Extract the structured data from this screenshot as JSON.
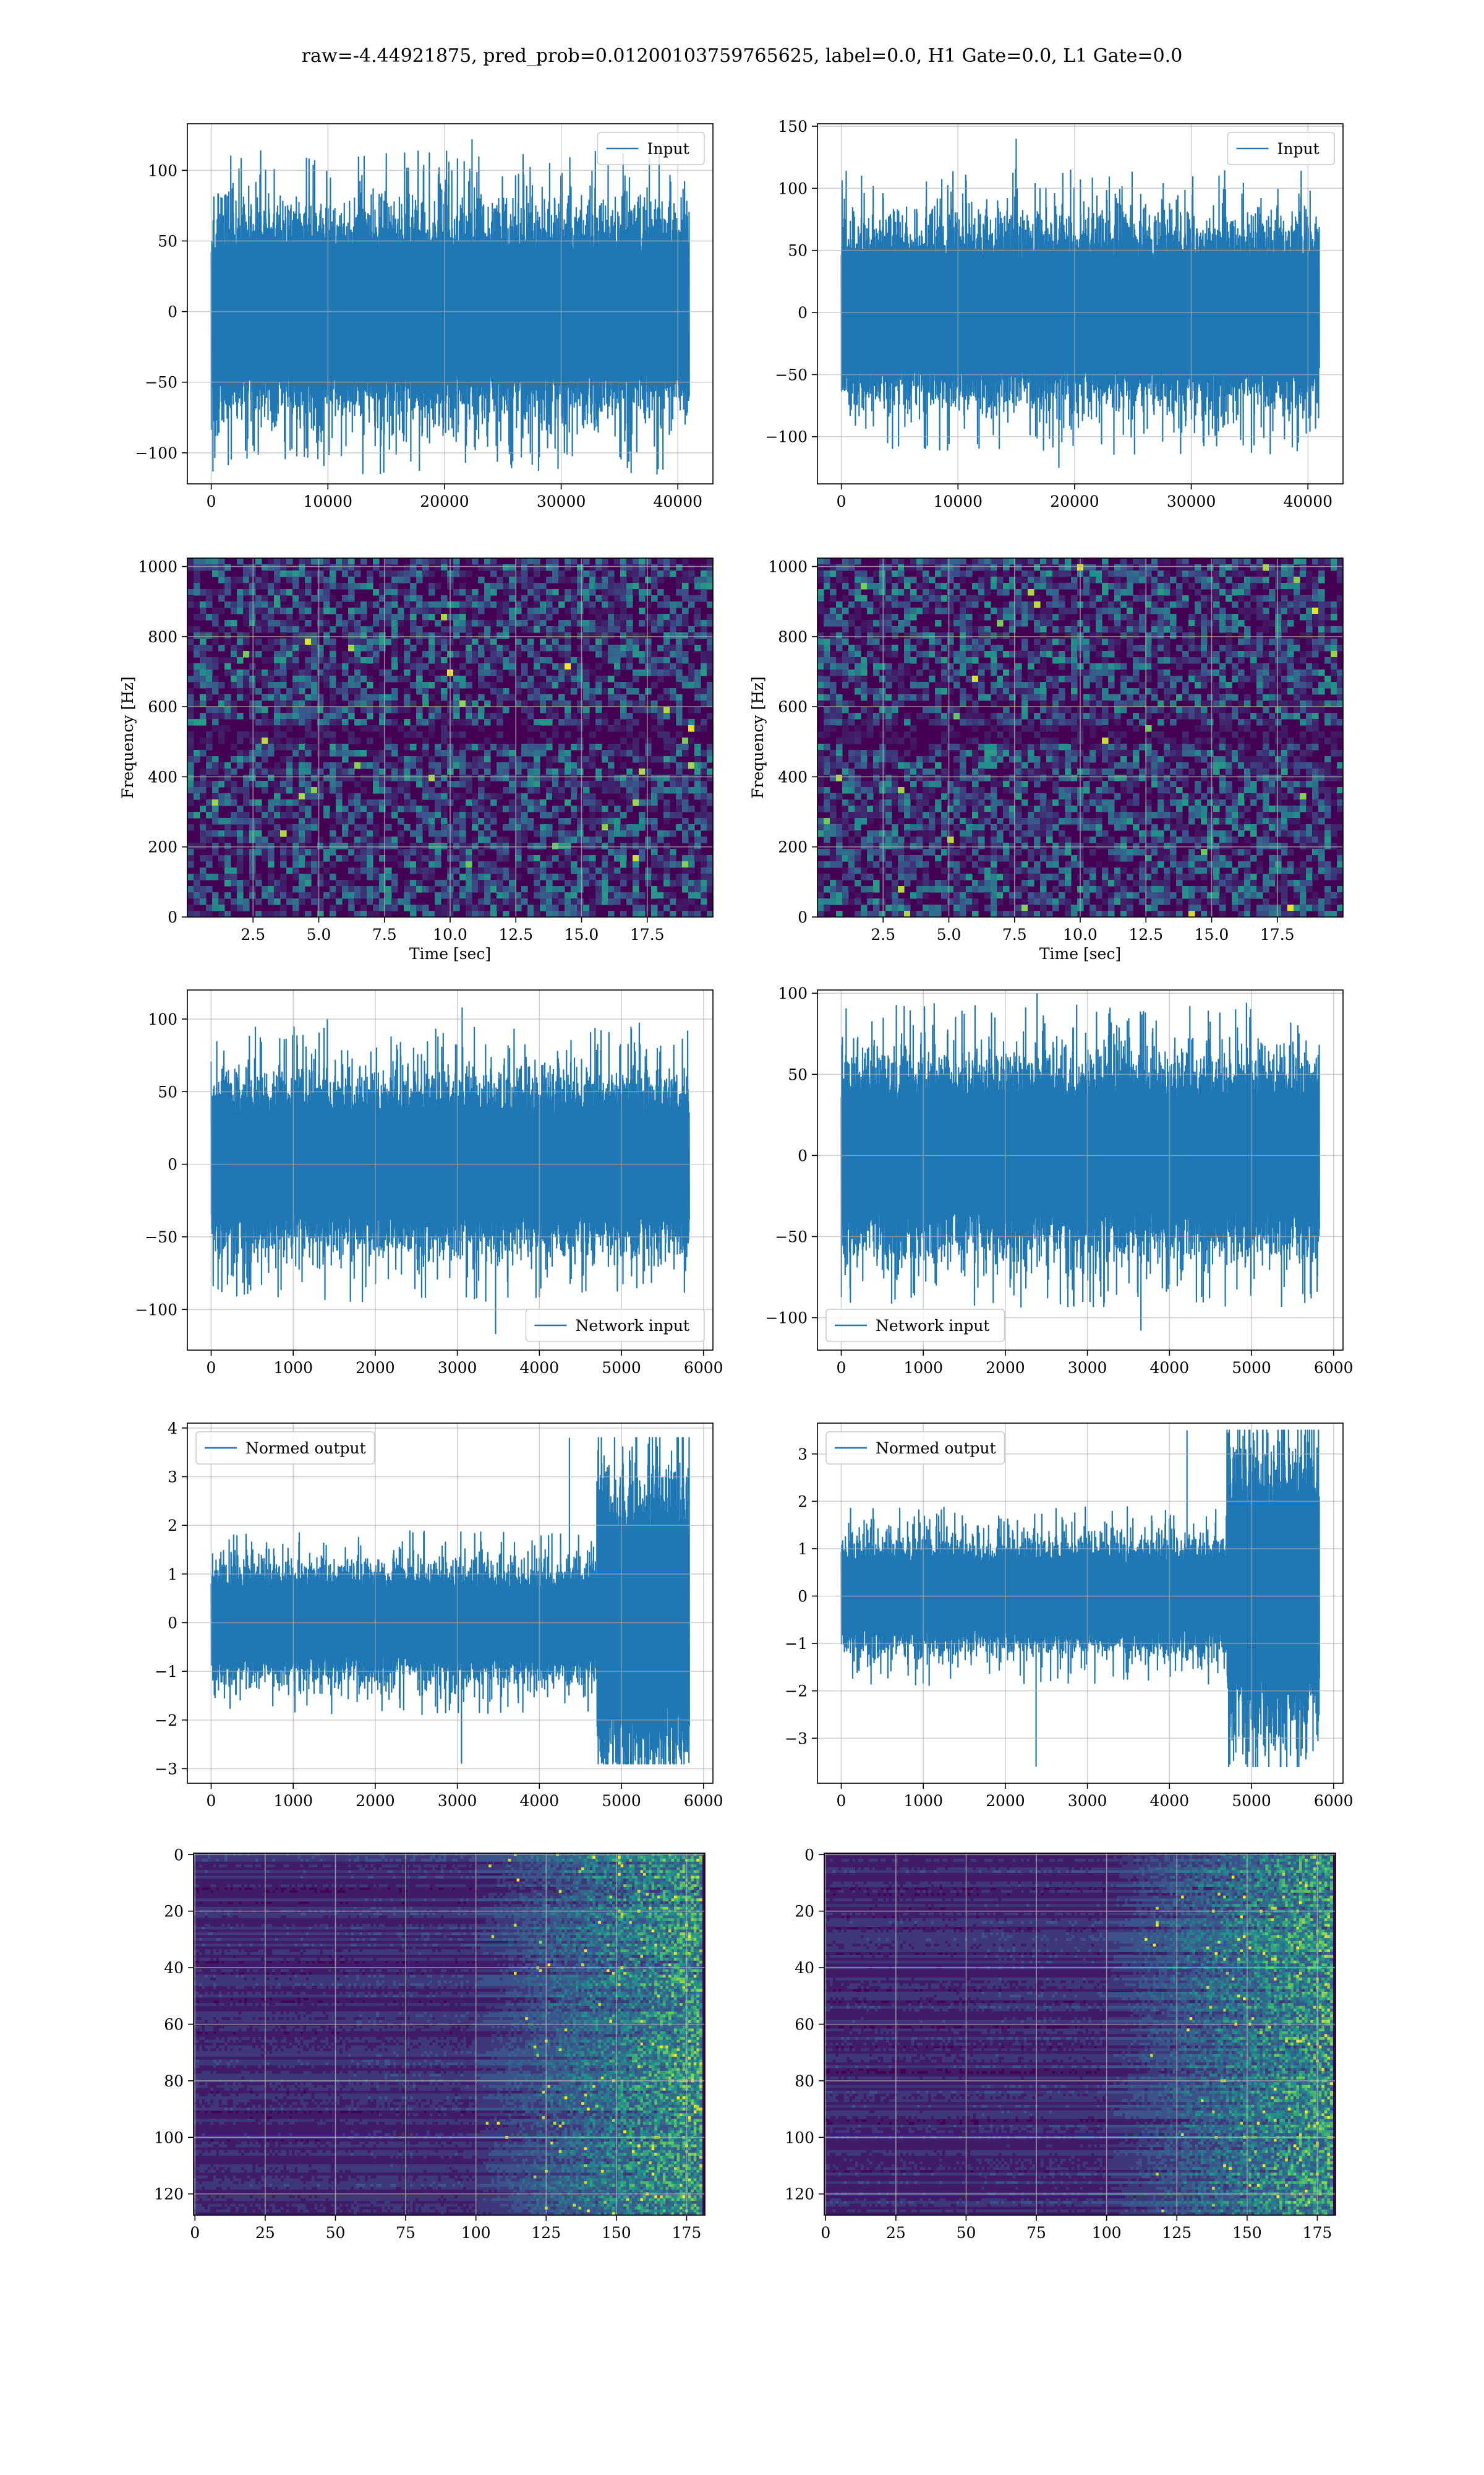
{
  "figure": {
    "suptitle": "raw=-4.44921875, pred_prob=0.01200103759765625, label=0.0, H1 Gate=0.0, L1 Gate=0.0"
  },
  "colors": {
    "line": "#1f77b4",
    "grid": "#b0b0b0",
    "spine": "#000000",
    "viridis_low": "#440154",
    "viridis_mid": "#21918c",
    "viridis_high": "#fde725"
  },
  "chart_data": [
    {
      "id": "input-h1",
      "type": "line",
      "title": "",
      "xlabel": "",
      "ylabel": "",
      "legend": {
        "label": "Input",
        "placement": "upper right"
      },
      "xlim": [
        -2048,
        43008
      ],
      "ylim": [
        -122,
        133
      ],
      "xticks": [
        0,
        10000,
        20000,
        30000,
        40000
      ],
      "xtick_labels": [
        "0",
        "10000",
        "20000",
        "30000",
        "40000"
      ],
      "yticks": [
        -100,
        -50,
        0,
        50,
        100
      ],
      "ytick_labels": [
        "−100",
        "−50",
        "0",
        "50",
        "100"
      ],
      "series": [
        {
          "name": "Input",
          "x_range": [
            0,
            40960
          ],
          "n_points": 40960,
          "band": [
            -55,
            55
          ],
          "peak_max": 122,
          "peak_min": -115
        }
      ],
      "grid": true
    },
    {
      "id": "input-l1",
      "type": "line",
      "title": "",
      "xlabel": "",
      "ylabel": "",
      "legend": {
        "label": "Input",
        "placement": "upper right"
      },
      "xlim": [
        -2048,
        43008
      ],
      "ylim": [
        -138,
        152
      ],
      "xticks": [
        0,
        10000,
        20000,
        30000,
        40000
      ],
      "xtick_labels": [
        "0",
        "10000",
        "20000",
        "30000",
        "40000"
      ],
      "yticks": [
        -100,
        -50,
        0,
        50,
        100,
        150
      ],
      "ytick_labels": [
        "−100",
        "−50",
        "0",
        "50",
        "100",
        "150"
      ],
      "series": [
        {
          "name": "Input",
          "x_range": [
            0,
            40960
          ],
          "n_points": 40960,
          "band": [
            -55,
            55
          ],
          "peak_max": 140,
          "peak_min": -125
        }
      ],
      "grid": true
    },
    {
      "id": "spectrogram-h1",
      "type": "heatmap",
      "title": "",
      "xlabel": "Time [sec]",
      "ylabel": "Frequency [Hz]",
      "xlim": [
        0,
        20
      ],
      "ylim": [
        0,
        1024
      ],
      "xticks": [
        2.5,
        5.0,
        7.5,
        10.0,
        12.5,
        15.0,
        17.5
      ],
      "xtick_labels": [
        "2.5",
        "5.0",
        "7.5",
        "10.0",
        "12.5",
        "15.0",
        "17.5"
      ],
      "yticks": [
        0,
        200,
        400,
        600,
        800,
        1000
      ],
      "ytick_labels": [
        "0",
        "200",
        "400",
        "600",
        "800",
        "1000"
      ],
      "colormap": "viridis",
      "grid": true
    },
    {
      "id": "spectrogram-l1",
      "type": "heatmap",
      "title": "",
      "xlabel": "Time [sec]",
      "ylabel": "Frequency [Hz]",
      "xlim": [
        0,
        20
      ],
      "ylim": [
        0,
        1024
      ],
      "xticks": [
        2.5,
        5.0,
        7.5,
        10.0,
        12.5,
        15.0,
        17.5
      ],
      "xtick_labels": [
        "2.5",
        "5.0",
        "7.5",
        "10.0",
        "12.5",
        "15.0",
        "17.5"
      ],
      "yticks": [
        0,
        200,
        400,
        600,
        800,
        1000
      ],
      "ytick_labels": [
        "0",
        "200",
        "400",
        "600",
        "800",
        "1000"
      ],
      "colormap": "viridis",
      "grid": true
    },
    {
      "id": "network-input-h1",
      "type": "line",
      "title": "",
      "xlabel": "",
      "ylabel": "",
      "legend": {
        "label": "Network input",
        "placement": "lower right"
      },
      "xlim": [
        -290,
        6115
      ],
      "ylim": [
        -128,
        120
      ],
      "xticks": [
        0,
        1000,
        2000,
        3000,
        4000,
        5000,
        6000
      ],
      "xtick_labels": [
        "0",
        "1000",
        "2000",
        "3000",
        "4000",
        "5000",
        "6000"
      ],
      "yticks": [
        -100,
        -50,
        0,
        50,
        100
      ],
      "ytick_labels": [
        "−100",
        "−50",
        "0",
        "50",
        "100"
      ],
      "series": [
        {
          "name": "Network input",
          "x_range": [
            0,
            5825
          ],
          "n_points": 5825,
          "band": [
            -45,
            45
          ],
          "peak_max": 108,
          "peak_min": -117
        }
      ],
      "grid": true
    },
    {
      "id": "network-input-l1",
      "type": "line",
      "title": "",
      "xlabel": "",
      "ylabel": "",
      "legend": {
        "label": "Network input",
        "placement": "lower left"
      },
      "xlim": [
        -290,
        6115
      ],
      "ylim": [
        -120,
        102
      ],
      "xticks": [
        0,
        1000,
        2000,
        3000,
        4000,
        5000,
        6000
      ],
      "xtick_labels": [
        "0",
        "1000",
        "2000",
        "3000",
        "4000",
        "5000",
        "6000"
      ],
      "yticks": [
        -100,
        -50,
        0,
        50,
        100
      ],
      "ytick_labels": [
        "−100",
        "−50",
        "0",
        "50",
        "100"
      ],
      "series": [
        {
          "name": "Network input",
          "x_range": [
            0,
            5825
          ],
          "n_points": 5825,
          "band": [
            -45,
            45
          ],
          "peak_max": 100,
          "peak_min": -108
        }
      ],
      "grid": true
    },
    {
      "id": "normed-output-h1",
      "type": "line",
      "title": "",
      "xlabel": "",
      "ylabel": "",
      "legend": {
        "label": "Normed output",
        "placement": "upper left"
      },
      "xlim": [
        -290,
        6115
      ],
      "ylim": [
        -3.3,
        4.1
      ],
      "xticks": [
        0,
        1000,
        2000,
        3000,
        4000,
        5000,
        6000
      ],
      "xtick_labels": [
        "0",
        "1000",
        "2000",
        "3000",
        "4000",
        "5000",
        "6000"
      ],
      "yticks": [
        -3,
        -2,
        -1,
        0,
        1,
        2,
        3,
        4
      ],
      "ytick_labels": [
        "−3",
        "−2",
        "−1",
        "0",
        "1",
        "2",
        "3",
        "4"
      ],
      "series": [
        {
          "name": "Normed output",
          "x_range": [
            0,
            5825
          ],
          "n_points": 5825,
          "segments": [
            {
              "from": 0,
              "to": 4700,
              "band": [
                -0.9,
                0.9
              ]
            },
            {
              "from": 4700,
              "to": 5825,
              "band": [
                -2.2,
                2.4
              ]
            }
          ],
          "peak_max": 3.8,
          "peak_min": -2.9
        }
      ],
      "grid": true
    },
    {
      "id": "normed-output-l1",
      "type": "line",
      "title": "",
      "xlabel": "",
      "ylabel": "",
      "legend": {
        "label": "Normed output",
        "placement": "upper left"
      },
      "xlim": [
        -290,
        6115
      ],
      "ylim": [
        -3.95,
        3.65
      ],
      "xticks": [
        0,
        1000,
        2000,
        3000,
        4000,
        5000,
        6000
      ],
      "xtick_labels": [
        "0",
        "1000",
        "2000",
        "3000",
        "4000",
        "5000",
        "6000"
      ],
      "yticks": [
        -3,
        -2,
        -1,
        0,
        1,
        2,
        3
      ],
      "ytick_labels": [
        "−3",
        "−2",
        "−1",
        "0",
        "1",
        "2",
        "3"
      ],
      "series": [
        {
          "name": "Normed output",
          "x_range": [
            0,
            5825
          ],
          "n_points": 5825,
          "segments": [
            {
              "from": 0,
              "to": 4700,
              "band": [
                -0.9,
                0.9
              ]
            },
            {
              "from": 4700,
              "to": 5825,
              "band": [
                -2.2,
                2.4
              ]
            }
          ],
          "peak_max": 3.5,
          "peak_min": -3.6
        }
      ],
      "grid": true
    },
    {
      "id": "feature-map-h1",
      "type": "heatmap",
      "title": "",
      "xlabel": "",
      "ylabel": "",
      "xlim": [
        -0.5,
        181.5
      ],
      "ylim": [
        127.5,
        -0.5
      ],
      "xticks": [
        0,
        25,
        50,
        75,
        100,
        125,
        150,
        175
      ],
      "xtick_labels": [
        "0",
        "25",
        "50",
        "75",
        "100",
        "125",
        "150",
        "175"
      ],
      "yticks": [
        0,
        20,
        40,
        60,
        80,
        100,
        120
      ],
      "ytick_labels": [
        "0",
        "20",
        "40",
        "60",
        "80",
        "100",
        "120"
      ],
      "colormap": "viridis",
      "grid": true
    },
    {
      "id": "feature-map-l1",
      "type": "heatmap",
      "title": "",
      "xlabel": "",
      "ylabel": "",
      "xlim": [
        -0.5,
        181.5
      ],
      "ylim": [
        127.5,
        -0.5
      ],
      "xticks": [
        0,
        25,
        50,
        75,
        100,
        125,
        150,
        175
      ],
      "xtick_labels": [
        "0",
        "25",
        "50",
        "75",
        "100",
        "125",
        "150",
        "175"
      ],
      "yticks": [
        0,
        20,
        40,
        60,
        80,
        100,
        120
      ],
      "ytick_labels": [
        "0",
        "20",
        "40",
        "60",
        "80",
        "100",
        "120"
      ],
      "colormap": "viridis",
      "grid": true
    }
  ]
}
